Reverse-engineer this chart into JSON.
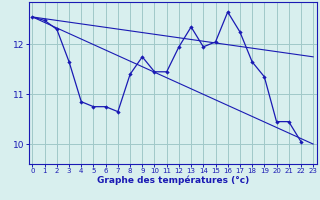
{
  "xlabel": "Graphe des températures (°c)",
  "background_color": "#d8efee",
  "grid_color": "#a0c8c8",
  "line_color": "#1a1ab4",
  "ylim": [
    9.6,
    12.85
  ],
  "xlim": [
    -0.3,
    23.3
  ],
  "yticks": [
    10,
    11,
    12
  ],
  "xticks": [
    0,
    1,
    2,
    3,
    4,
    5,
    6,
    7,
    8,
    9,
    10,
    11,
    12,
    13,
    14,
    15,
    16,
    17,
    18,
    19,
    20,
    21,
    22,
    23
  ],
  "line1_x": [
    0,
    1,
    2,
    3,
    4,
    5,
    6,
    7,
    8,
    9,
    10,
    11,
    12,
    13,
    14,
    15,
    16,
    17,
    18,
    19,
    20,
    21,
    22,
    23
  ],
  "line1_y": [
    12.55,
    12.48,
    12.3,
    11.65,
    10.85,
    10.75,
    10.75,
    10.65,
    11.4,
    11.75,
    11.45,
    11.45,
    11.95,
    12.35,
    11.95,
    12.05,
    12.65,
    12.25,
    11.65,
    11.35,
    10.45,
    10.45,
    10.05,
    null
  ],
  "line2_x": [
    0,
    23
  ],
  "line2_y": [
    12.55,
    11.75
  ],
  "line3_x": [
    0,
    23
  ],
  "line3_y": [
    12.55,
    10.0
  ]
}
